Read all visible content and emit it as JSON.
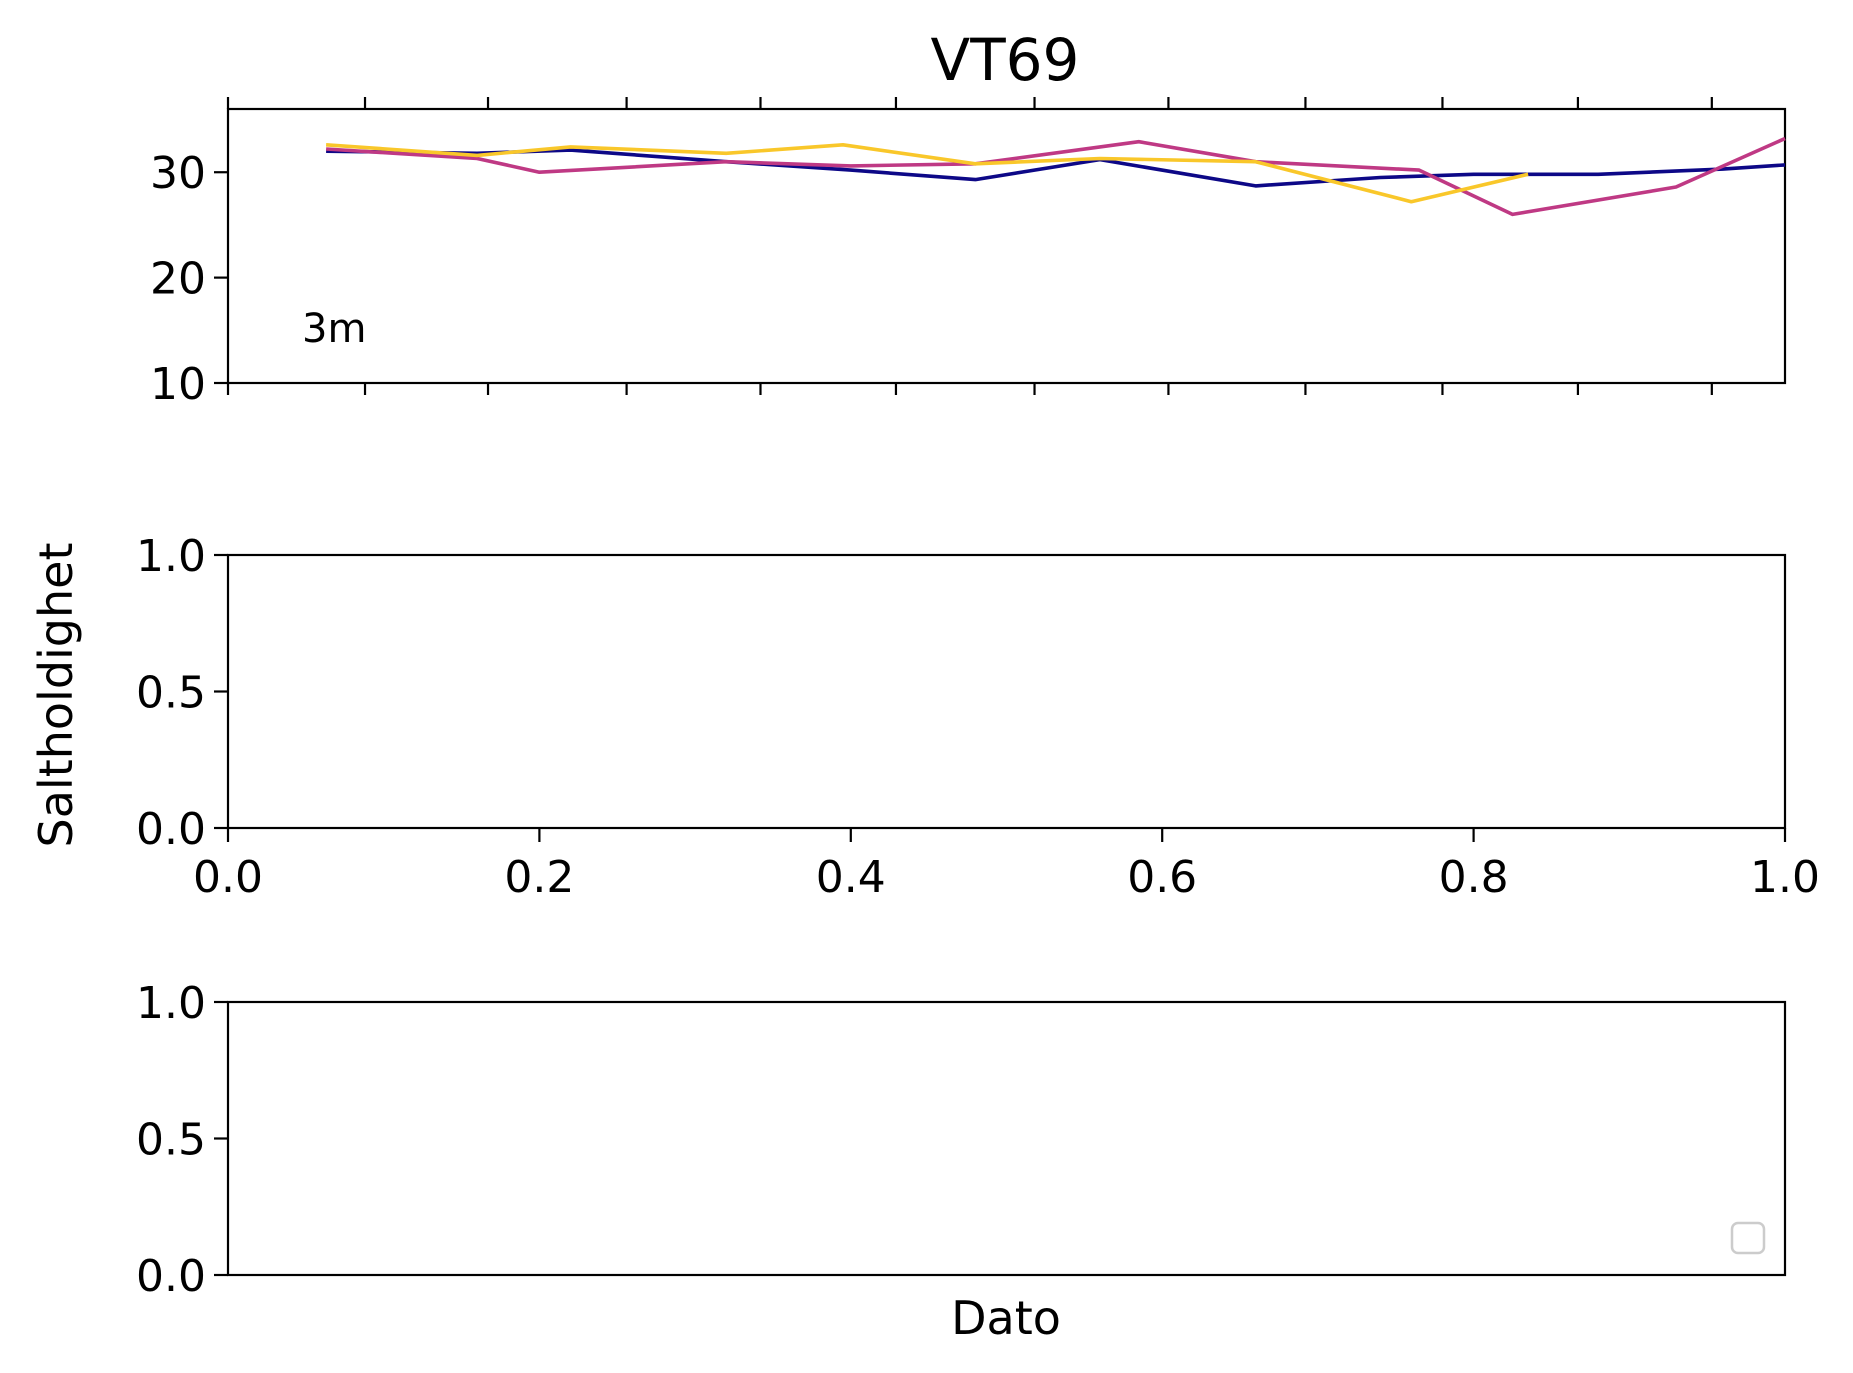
{
  "chart_data": [
    {
      "type": "line",
      "title": "VT69",
      "annotation": "3m",
      "ylim": [
        10,
        36
      ],
      "yticks": [
        "10",
        "20",
        "30"
      ],
      "ytick_values": [
        10,
        20,
        30
      ],
      "x_minor_ticks": [
        0.088,
        0.167,
        0.256,
        0.342,
        0.429,
        0.518,
        0.604,
        0.692,
        0.78,
        0.867,
        0.953
      ],
      "xlim": [
        0,
        1
      ],
      "series": [
        {
          "color": "#0d0887",
          "x": [
            0.063,
            0.16,
            0.22,
            0.32,
            0.4,
            0.48,
            0.56,
            0.66,
            0.74,
            0.8,
            0.88,
            0.96,
            1.0
          ],
          "y": [
            32.0,
            31.8,
            32.1,
            31.0,
            30.2,
            29.3,
            31.2,
            28.7,
            29.5,
            29.8,
            29.8,
            30.3,
            30.7
          ]
        },
        {
          "color": "#bf3984",
          "x": [
            0.063,
            0.16,
            0.2,
            0.32,
            0.4,
            0.48,
            0.585,
            0.66,
            0.765,
            0.825,
            0.93,
            1.0
          ],
          "y": [
            32.2,
            31.3,
            30.0,
            31.0,
            30.6,
            30.8,
            32.9,
            31.0,
            30.2,
            26.0,
            28.6,
            33.2
          ]
        },
        {
          "color": "#f9c72a",
          "x": [
            0.063,
            0.16,
            0.22,
            0.32,
            0.395,
            0.48,
            0.56,
            0.66,
            0.76,
            0.835
          ],
          "y": [
            32.6,
            31.6,
            32.4,
            31.8,
            32.6,
            30.8,
            31.3,
            31.0,
            27.2,
            29.8
          ]
        }
      ]
    },
    {
      "type": "line",
      "ylim": [
        0,
        1
      ],
      "yticks": [
        "0.0",
        "0.5",
        "1.0"
      ],
      "ytick_values": [
        0,
        0.5,
        1
      ],
      "xlim": [
        0,
        1
      ],
      "xticks": [
        "0.0",
        "0.2",
        "0.4",
        "0.6",
        "0.8",
        "1.0"
      ],
      "xtick_values": [
        0,
        0.2,
        0.4,
        0.6,
        0.8,
        1
      ],
      "series": []
    },
    {
      "type": "line",
      "ylim": [
        0,
        1
      ],
      "yticks": [
        "0.0",
        "0.5",
        "1.0"
      ],
      "ytick_values": [
        0,
        0.5,
        1
      ],
      "xlim": [
        0,
        1
      ],
      "xlabel": "Dato",
      "legend": "bottom-right",
      "series": []
    }
  ],
  "shared_ylabel": "Saltholdighet"
}
